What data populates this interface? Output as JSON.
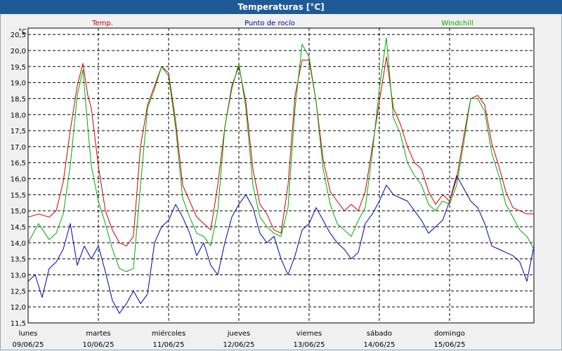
{
  "window": {
    "title": "Temperaturas [°C]"
  },
  "chart_data": {
    "type": "line",
    "title": "Temperaturas [°C]",
    "ylabel": "°C",
    "ylim": [
      11.5,
      20.7
    ],
    "y_ticks": [
      "11,5",
      "12,0",
      "12,5",
      "13,0",
      "13,5",
      "14,0",
      "14,5",
      "15,0",
      "15,5",
      "16,0",
      "16,5",
      "17,0",
      "17,5",
      "18,0",
      "18,5",
      "19,0",
      "19,5",
      "20,0",
      "20,5"
    ],
    "x_ticks": [
      {
        "day": "lunes",
        "date": "09/06/25"
      },
      {
        "day": "martes",
        "date": "10/06/25"
      },
      {
        "day": "miércoles",
        "date": "11/06/25"
      },
      {
        "day": "jueves",
        "date": "12/06/25"
      },
      {
        "day": "viernes",
        "date": "13/06/25"
      },
      {
        "day": "sábado",
        "date": "14/06/25"
      },
      {
        "day": "domingo",
        "date": "15/06/25"
      }
    ],
    "x_range_days": [
      0,
      7.2
    ],
    "grid": true,
    "series": [
      {
        "name": "Temp.",
        "color": "#cc0000",
        "x": [
          0,
          0.15,
          0.3,
          0.4,
          0.5,
          0.6,
          0.7,
          0.78,
          0.85,
          0.9,
          1.0,
          1.1,
          1.2,
          1.3,
          1.4,
          1.5,
          1.6,
          1.7,
          1.8,
          1.9,
          2.0,
          2.1,
          2.2,
          2.3,
          2.4,
          2.5,
          2.6,
          2.7,
          2.8,
          2.9,
          3.0,
          3.1,
          3.2,
          3.3,
          3.4,
          3.5,
          3.6,
          3.7,
          3.8,
          3.9,
          4.0,
          4.1,
          4.2,
          4.3,
          4.4,
          4.5,
          4.6,
          4.7,
          4.8,
          4.9,
          5.0,
          5.1,
          5.2,
          5.3,
          5.4,
          5.5,
          5.6,
          5.7,
          5.8,
          5.9,
          6.0,
          6.1,
          6.2,
          6.3,
          6.4,
          6.5,
          6.6,
          6.7,
          6.8,
          6.9,
          7.0,
          7.1,
          7.2
        ],
        "y": [
          14.8,
          14.9,
          14.8,
          15.0,
          15.9,
          17.5,
          18.9,
          19.6,
          18.6,
          18.2,
          16.4,
          15.0,
          14.4,
          14.0,
          13.9,
          14.2,
          17.0,
          18.3,
          18.9,
          19.5,
          19.3,
          17.8,
          15.8,
          15.3,
          14.8,
          14.6,
          14.4,
          15.8,
          17.6,
          18.9,
          19.5,
          18.4,
          16.3,
          15.2,
          14.9,
          14.4,
          14.3,
          15.8,
          18.6,
          19.7,
          19.7,
          18.4,
          16.6,
          15.6,
          15.3,
          15.0,
          15.2,
          15.0,
          15.6,
          17.0,
          18.4,
          19.8,
          18.2,
          17.7,
          17.0,
          16.5,
          16.3,
          15.6,
          15.2,
          15.5,
          15.3,
          16.0,
          17.3,
          18.5,
          18.6,
          18.3,
          17.1,
          16.4,
          15.6,
          15.1,
          15.0,
          14.9,
          14.9
        ]
      },
      {
        "name": "Punto de rocío",
        "color": "#0000aa",
        "x": [
          0,
          0.1,
          0.2,
          0.3,
          0.4,
          0.5,
          0.6,
          0.7,
          0.8,
          0.9,
          1.0,
          1.1,
          1.2,
          1.3,
          1.4,
          1.5,
          1.6,
          1.7,
          1.8,
          1.9,
          2.0,
          2.1,
          2.2,
          2.3,
          2.4,
          2.5,
          2.6,
          2.7,
          2.8,
          2.9,
          3.0,
          3.1,
          3.2,
          3.3,
          3.4,
          3.5,
          3.6,
          3.7,
          3.8,
          3.9,
          4.0,
          4.1,
          4.2,
          4.3,
          4.4,
          4.5,
          4.6,
          4.7,
          4.8,
          4.9,
          5.0,
          5.1,
          5.2,
          5.3,
          5.4,
          5.5,
          5.6,
          5.7,
          5.8,
          5.9,
          6.0,
          6.1,
          6.2,
          6.3,
          6.4,
          6.5,
          6.6,
          6.7,
          6.8,
          6.9,
          7.0,
          7.1,
          7.2
        ],
        "y": [
          12.8,
          13.0,
          12.3,
          13.2,
          13.4,
          13.8,
          14.6,
          13.3,
          13.9,
          13.5,
          13.9,
          13.1,
          12.2,
          11.8,
          12.1,
          12.5,
          12.1,
          12.4,
          14.0,
          14.5,
          14.7,
          15.2,
          14.8,
          14.3,
          13.6,
          14.0,
          13.3,
          13.0,
          14.0,
          14.8,
          15.2,
          15.5,
          15.1,
          14.3,
          14.0,
          14.2,
          13.5,
          13.0,
          13.6,
          14.4,
          14.6,
          15.1,
          14.7,
          14.3,
          14.0,
          13.8,
          13.5,
          13.7,
          14.6,
          14.9,
          15.3,
          15.8,
          15.5,
          15.4,
          15.3,
          15.0,
          14.7,
          14.3,
          14.5,
          14.7,
          15.3,
          16.1,
          15.7,
          15.3,
          15.1,
          14.6,
          13.9,
          13.8,
          13.7,
          13.6,
          13.4,
          12.8,
          13.9
        ]
      },
      {
        "name": "Windchill",
        "color": "#00aa00",
        "x": [
          0,
          0.15,
          0.3,
          0.4,
          0.5,
          0.6,
          0.7,
          0.78,
          0.85,
          0.9,
          1.0,
          1.1,
          1.2,
          1.3,
          1.4,
          1.5,
          1.6,
          1.7,
          1.8,
          1.9,
          2.0,
          2.1,
          2.2,
          2.3,
          2.4,
          2.5,
          2.6,
          2.7,
          2.8,
          2.9,
          3.0,
          3.1,
          3.2,
          3.3,
          3.4,
          3.5,
          3.6,
          3.7,
          3.8,
          3.9,
          4.0,
          4.1,
          4.2,
          4.3,
          4.4,
          4.5,
          4.6,
          4.7,
          4.8,
          4.9,
          5.0,
          5.1,
          5.2,
          5.3,
          5.4,
          5.5,
          5.6,
          5.7,
          5.8,
          5.9,
          6.0,
          6.1,
          6.2,
          6.3,
          6.4,
          6.5,
          6.6,
          6.7,
          6.8,
          6.9,
          7.0,
          7.1,
          7.2
        ],
        "y": [
          14.0,
          14.6,
          14.1,
          14.3,
          14.9,
          16.4,
          18.6,
          19.4,
          17.6,
          16.4,
          15.3,
          14.6,
          13.8,
          13.2,
          13.1,
          13.2,
          15.8,
          18.2,
          18.8,
          19.5,
          19.2,
          17.6,
          15.4,
          14.8,
          14.3,
          14.2,
          13.9,
          15.0,
          17.6,
          18.8,
          19.6,
          18.2,
          15.8,
          14.8,
          14.5,
          14.3,
          14.2,
          15.1,
          18.2,
          20.2,
          19.8,
          18.4,
          16.3,
          15.2,
          14.6,
          14.4,
          14.2,
          14.7,
          15.1,
          16.8,
          18.8,
          20.4,
          17.9,
          17.4,
          16.5,
          16.1,
          15.8,
          15.2,
          15.0,
          15.3,
          15.2,
          15.8,
          17.1,
          18.5,
          18.5,
          18.1,
          16.8,
          16.1,
          15.2,
          14.8,
          14.4,
          14.2,
          13.8
        ]
      }
    ]
  }
}
